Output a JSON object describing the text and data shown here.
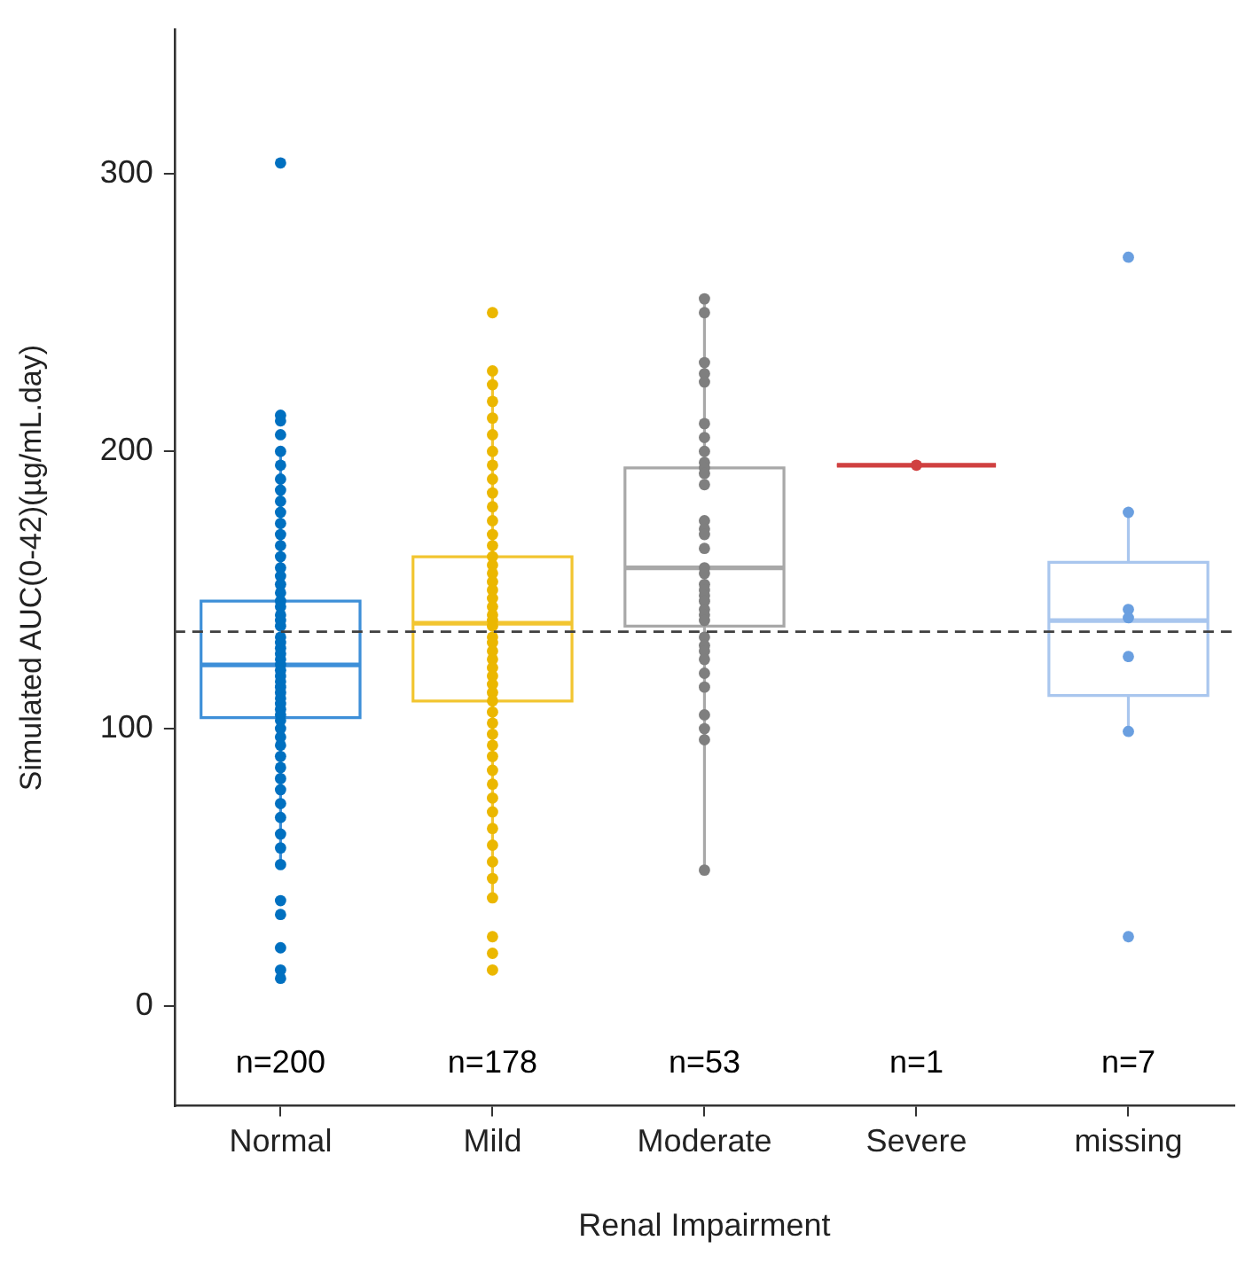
{
  "chart_data": {
    "type": "box",
    "xlabel": "Renal Impairment",
    "ylabel": "Simulated AUC(0-42)(µg/mL.day)",
    "categories": [
      "Normal",
      "Mild",
      "Moderate",
      "Severe",
      "missing"
    ],
    "ylim": [
      -36,
      352
    ],
    "yticks": [
      0,
      100,
      200,
      300
    ],
    "grid": false,
    "legend": false,
    "series": [
      {
        "type": "box",
        "colors": [
          "#3d8fd8",
          "#f2c530",
          "#a8a8a8",
          "#d04040",
          "#a9c6ee"
        ],
        "boxes": [
          {
            "low": 51,
            "q1": 104,
            "median": 123,
            "q3": 146,
            "high": 200
          },
          {
            "low": 39,
            "q1": 110,
            "median": 138,
            "q3": 162,
            "high": 229
          },
          {
            "low": 49,
            "q1": 137,
            "median": 158,
            "q3": 194,
            "high": 255
          },
          {
            "low": 195,
            "q1": 195,
            "median": 195,
            "q3": 195,
            "high": 195
          },
          {
            "low": 99,
            "q1": 112,
            "median": 139,
            "q3": 160,
            "high": 178
          }
        ]
      },
      {
        "type": "scatter",
        "color": "#0070c0",
        "x": [
          "Normal",
          "Normal",
          "Normal",
          "Normal",
          "Normal",
          "Normal",
          "Normal",
          "Normal",
          "Normal",
          "Normal",
          "Normal",
          "Normal",
          "Normal",
          "Normal",
          "Normal",
          "Normal",
          "Normal",
          "Normal",
          "Normal",
          "Normal",
          "Normal",
          "Normal",
          "Normal",
          "Normal",
          "Normal",
          "Normal",
          "Normal",
          "Normal",
          "Normal",
          "Normal",
          "Normal",
          "Normal",
          "Normal",
          "Normal",
          "Normal",
          "Normal",
          "Normal",
          "Normal",
          "Normal",
          "Normal",
          "Normal",
          "Normal",
          "Normal",
          "Normal",
          "Normal",
          "Normal",
          "Normal",
          "Normal",
          "Normal",
          "Normal",
          "Normal",
          "Normal",
          "Normal",
          "Normal",
          "Normal",
          "Normal"
        ],
        "values": [
          304,
          213,
          211,
          206,
          200,
          195,
          190,
          186,
          182,
          178,
          174,
          170,
          166,
          162,
          158,
          155,
          152,
          149,
          146,
          144,
          141,
          139,
          137,
          133,
          131,
          129,
          127,
          125,
          123,
          121,
          119,
          117,
          115,
          113,
          111,
          109,
          107,
          105,
          103,
          100,
          97,
          94,
          90,
          86,
          82,
          78,
          73,
          68,
          62,
          57,
          51,
          38,
          33,
          21,
          13,
          10
        ]
      },
      {
        "type": "scatter",
        "color": "#ebb700",
        "x": [
          "Mild",
          "Mild",
          "Mild",
          "Mild",
          "Mild",
          "Mild",
          "Mild",
          "Mild",
          "Mild",
          "Mild",
          "Mild",
          "Mild",
          "Mild",
          "Mild",
          "Mild",
          "Mild",
          "Mild",
          "Mild",
          "Mild",
          "Mild",
          "Mild",
          "Mild",
          "Mild",
          "Mild",
          "Mild",
          "Mild",
          "Mild",
          "Mild",
          "Mild",
          "Mild",
          "Mild",
          "Mild",
          "Mild",
          "Mild",
          "Mild",
          "Mild",
          "Mild",
          "Mild",
          "Mild",
          "Mild",
          "Mild",
          "Mild",
          "Mild",
          "Mild",
          "Mild",
          "Mild",
          "Mild",
          "Mild",
          "Mild",
          "Mild"
        ],
        "values": [
          250,
          229,
          224,
          218,
          212,
          206,
          200,
          195,
          190,
          185,
          180,
          175,
          170,
          166,
          162,
          159,
          156,
          153,
          150,
          147,
          144,
          141,
          139,
          137,
          133,
          131,
          128,
          125,
          122,
          119,
          116,
          113,
          110,
          106,
          102,
          98,
          94,
          90,
          85,
          80,
          75,
          70,
          64,
          58,
          52,
          46,
          39,
          25,
          19,
          13
        ]
      },
      {
        "type": "scatter",
        "color": "#7f7f7f",
        "x": [
          "Moderate",
          "Moderate",
          "Moderate",
          "Moderate",
          "Moderate",
          "Moderate",
          "Moderate",
          "Moderate",
          "Moderate",
          "Moderate",
          "Moderate",
          "Moderate",
          "Moderate",
          "Moderate",
          "Moderate",
          "Moderate",
          "Moderate",
          "Moderate",
          "Moderate",
          "Moderate",
          "Moderate",
          "Moderate",
          "Moderate",
          "Moderate",
          "Moderate",
          "Moderate",
          "Moderate",
          "Moderate",
          "Moderate",
          "Moderate",
          "Moderate",
          "Moderate",
          "Moderate",
          "Moderate",
          "Moderate"
        ],
        "values": [
          255,
          250,
          232,
          228,
          225,
          210,
          205,
          200,
          196,
          194,
          192,
          188,
          175,
          172,
          170,
          165,
          158,
          156,
          152,
          150,
          148,
          146,
          143,
          141,
          139,
          133,
          130,
          128,
          125,
          120,
          115,
          105,
          100,
          96,
          49
        ]
      },
      {
        "type": "scatter",
        "color": "#d04040",
        "x": [
          "Severe"
        ],
        "values": [
          195
        ]
      },
      {
        "type": "scatter",
        "color": "#6a9fe0",
        "x": [
          "missing",
          "missing",
          "missing",
          "missing",
          "missing",
          "missing",
          "missing"
        ],
        "values": [
          270,
          178,
          143,
          140,
          126,
          99,
          25
        ]
      }
    ],
    "ref_lines": [
      {
        "axis": "y",
        "value": 135,
        "color": "#404040",
        "line_style": "dashed"
      }
    ],
    "annotations": [
      "n=200",
      "n=178",
      "n=53",
      "n=1",
      "n=7"
    ]
  }
}
